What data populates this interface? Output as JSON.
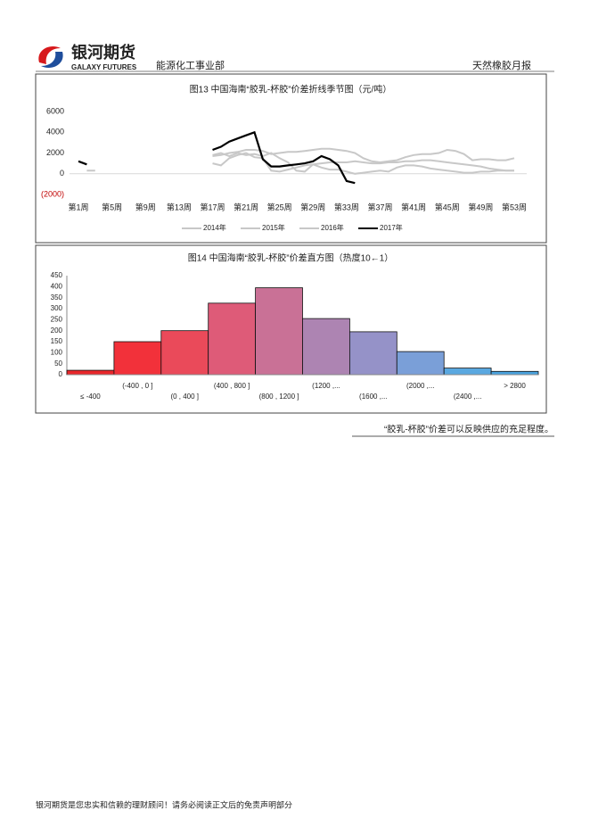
{
  "header": {
    "logo": "银河期货",
    "logo_en": "GALAXY FUTURES",
    "department": "能源化工事业部",
    "report": "天然橡胶月报"
  },
  "chart_data": [
    {
      "type": "line",
      "title": "图13 中国海南“胶乳-杯胶”价差折线季节图（元/吨）",
      "categories": [
        "第1周",
        null,
        null,
        null,
        "第5周",
        null,
        null,
        null,
        "第9周",
        null,
        null,
        null,
        "第13周",
        null,
        null,
        null,
        "第17周",
        null,
        null,
        null,
        "第21周",
        null,
        null,
        null,
        "第25周",
        null,
        null,
        null,
        "第29周",
        null,
        null,
        null,
        "第33周",
        null,
        null,
        null,
        "第37周",
        null,
        null,
        null,
        "第41周",
        null,
        null,
        null,
        "第45周",
        null,
        null,
        null,
        "第49周",
        null,
        null,
        null,
        "第53周"
      ],
      "series": [
        {
          "name": "2014年",
          "color": "#c8c8c8",
          "values": [
            null,
            300,
            300,
            null,
            null,
            null,
            null,
            null,
            null,
            null,
            null,
            null,
            null,
            null,
            null,
            null,
            1700,
            1800,
            2000,
            2100,
            2300,
            2300,
            2200,
            1900,
            2000,
            2100,
            2100,
            2200,
            2300,
            2400,
            2400,
            2300,
            2200,
            2000,
            1500,
            1200,
            1100,
            1200,
            1300,
            1600,
            1800,
            1900,
            1900,
            2000,
            2300,
            2200,
            1900,
            1300,
            1400,
            1400,
            1300,
            1300,
            1500
          ]
        },
        {
          "name": "2015年",
          "color": "#c8c8c8",
          "values": [
            null,
            null,
            null,
            null,
            null,
            null,
            null,
            null,
            null,
            null,
            null,
            null,
            null,
            null,
            null,
            null,
            1000,
            800,
            1500,
            1800,
            2000,
            1600,
            1500,
            300,
            200,
            400,
            600,
            800,
            900,
            1000,
            1100,
            1100,
            1100,
            1200,
            1100,
            1000,
            1000,
            1100,
            1100,
            1200,
            1200,
            1300,
            1300,
            1200,
            1100,
            1000,
            900,
            800,
            700,
            500,
            400,
            300,
            300
          ]
        },
        {
          "name": "2016年",
          "color": "#c8c8c8",
          "values": [
            null,
            null,
            null,
            null,
            null,
            null,
            null,
            null,
            null,
            null,
            null,
            null,
            null,
            null,
            null,
            null,
            1800,
            2000,
            1700,
            2000,
            1800,
            1900,
            1700,
            2000,
            1500,
            1100,
            300,
            200,
            900,
            600,
            400,
            400,
            200,
            0,
            100,
            200,
            300,
            200,
            600,
            800,
            800,
            700,
            500,
            400,
            300,
            200,
            100,
            100,
            200,
            200,
            300,
            300,
            300
          ]
        },
        {
          "name": "2017年",
          "color": "#000000",
          "values": [
            1200,
            900,
            null,
            null,
            null,
            null,
            null,
            null,
            null,
            null,
            null,
            null,
            null,
            null,
            null,
            null,
            2300,
            2600,
            3100,
            3400,
            3700,
            4000,
            1400,
            700,
            700,
            800,
            900,
            1000,
            1200,
            1700,
            1400,
            800,
            -700,
            -900,
            null,
            null,
            null,
            null,
            null,
            null,
            null,
            null,
            null,
            null,
            null,
            null,
            null,
            null,
            null,
            null,
            null,
            null,
            null
          ]
        }
      ],
      "ylim": [
        -2000,
        6000
      ],
      "yticks": [
        6000,
        4000,
        2000,
        0,
        {
          "value": -2000,
          "label": "(2000)"
        }
      ],
      "negative_tick_color": "#c00000",
      "legend": "bottom"
    },
    {
      "type": "bar",
      "title": "图14 中国海南“胶乳-杯胶”价差直方图（热度10←1）",
      "categories": [
        "≤ -400",
        "(-400 , 0 ]",
        "(0 , 400 ]",
        "(400 , 800 ]",
        "(800 , 1200 ]",
        "(1200 ,...",
        "(1600 ,...",
        "(2000 ,...",
        "(2400 ,...",
        "> 2800"
      ],
      "values": [
        20,
        150,
        200,
        325,
        395,
        255,
        195,
        105,
        30,
        15
      ],
      "colors": [
        "#e8262b",
        "#f2313a",
        "#ea4a5a",
        "#de5b78",
        "#c97196",
        "#ad84b2",
        "#9592c8",
        "#7a9fd8",
        "#5aa8e0",
        "#4aa3df"
      ],
      "ylim": [
        0,
        450
      ],
      "yticks": [
        0,
        50,
        100,
        150,
        200,
        250,
        300,
        350,
        400,
        450
      ]
    }
  ],
  "caption": "“胶乳-杯胶”价差可以反映供应的充足程度。",
  "footer": "银河期货是您忠实和信赖的理财顾问！请务必阅读正文后的免责声明部分"
}
